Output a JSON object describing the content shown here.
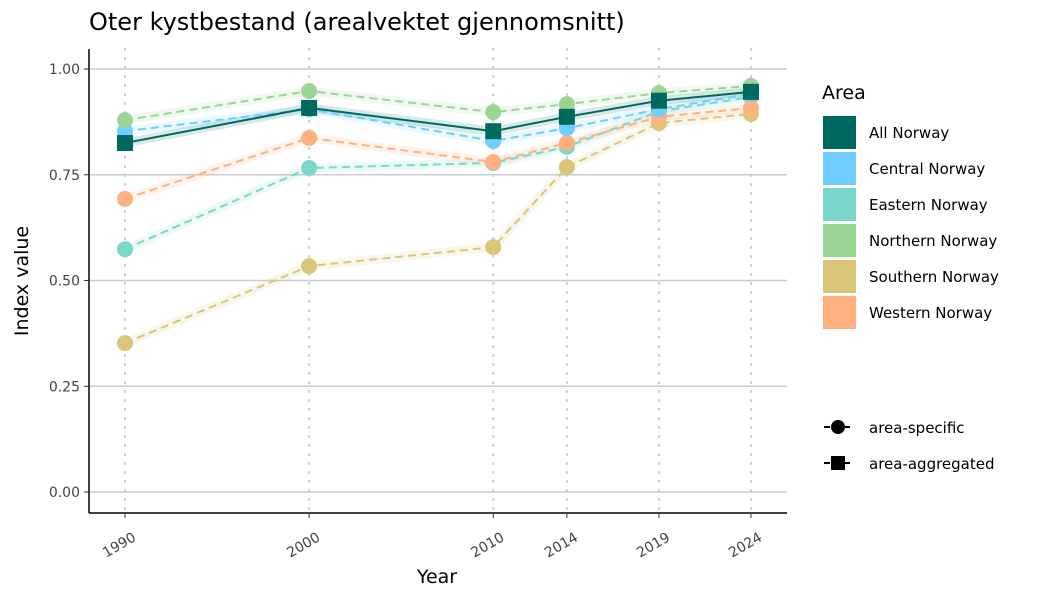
{
  "chart_data": {
    "type": "line",
    "title": "Oter kystbestand (arealvektet gjennomsnitt)",
    "xlabel": "Year",
    "ylabel": "Index value",
    "x": [
      1990,
      2000,
      2010,
      2014,
      2019,
      2024
    ],
    "x_ticks": [
      "1990",
      "2000",
      "2010",
      "2014",
      "2019",
      "2024"
    ],
    "ylim": [
      0,
      1
    ],
    "y_ticks": [
      "0.00",
      "0.25",
      "0.50",
      "0.75",
      "1.00"
    ],
    "y_tick_values": [
      0,
      0.25,
      0.5,
      0.75,
      1
    ],
    "grid": true,
    "legend_title": "Area",
    "legend_placement": "right",
    "series": [
      {
        "name": "All Norway",
        "color": "#00695f",
        "marker": "square",
        "line": "solid",
        "values": [
          0.825,
          0.908,
          0.853,
          0.887,
          0.925,
          0.946
        ]
      },
      {
        "name": "Central Norway",
        "color": "#6fcdff",
        "marker": "circle",
        "line": "dashed",
        "values": [
          0.853,
          0.905,
          0.83,
          0.86,
          0.905,
          0.941
        ]
      },
      {
        "name": "Eastern Norway",
        "color": "#79d7cb",
        "marker": "circle",
        "line": "dashed",
        "values": [
          0.574,
          0.766,
          0.778,
          0.816,
          0.9,
          0.934
        ]
      },
      {
        "name": "Northern Norway",
        "color": "#9ad593",
        "marker": "circle",
        "line": "dashed",
        "values": [
          0.879,
          0.948,
          0.898,
          0.917,
          0.943,
          0.96
        ]
      },
      {
        "name": "Southern Norway",
        "color": "#d9c679",
        "marker": "circle",
        "line": "dashed",
        "values": [
          0.352,
          0.534,
          0.579,
          0.768,
          0.872,
          0.894
        ]
      },
      {
        "name": "Western Norway",
        "color": "#ffb07f",
        "marker": "circle",
        "line": "dashed",
        "values": [
          0.693,
          0.837,
          0.78,
          0.825,
          0.887,
          0.908
        ]
      }
    ],
    "shape_legend": [
      {
        "label": "area-specific",
        "marker": "circle"
      },
      {
        "label": "area-aggregated",
        "marker": "square"
      }
    ]
  }
}
